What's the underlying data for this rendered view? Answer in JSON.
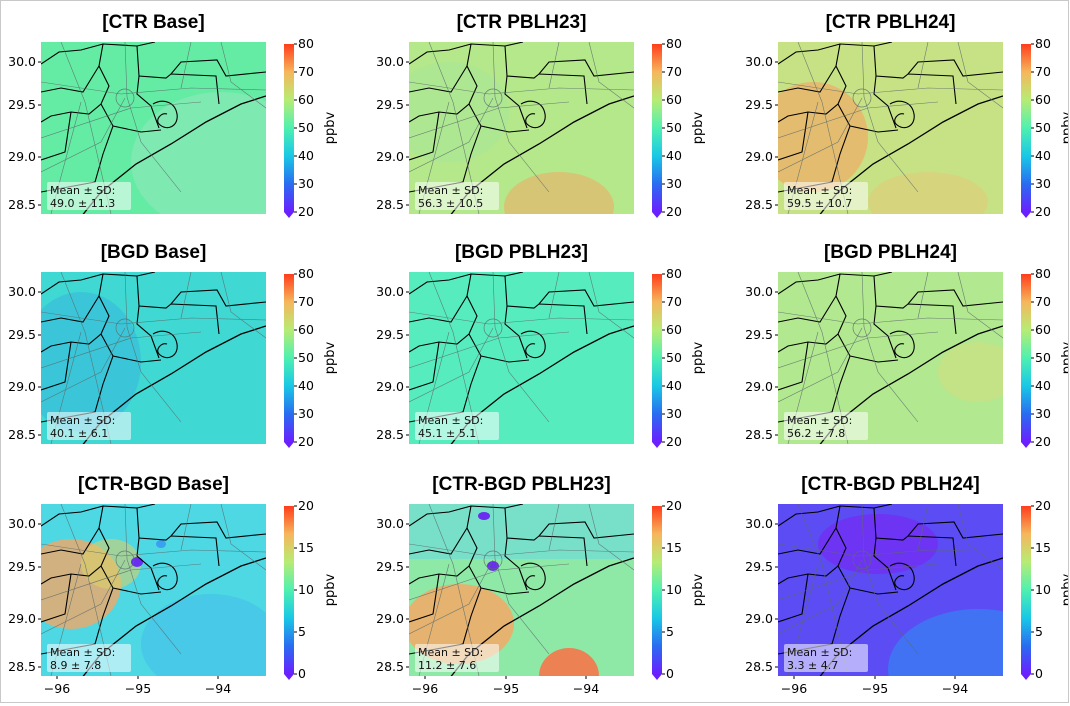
{
  "figure": {
    "x_ticks": [
      "−96",
      "−95",
      "−94"
    ],
    "y_ticks": [
      "30.0",
      "29.5",
      "29.0",
      "28.5"
    ],
    "colorbar_unit": "ppbv",
    "stat_label": "Mean ± SD:",
    "colormap": [
      "#6b1fff",
      "#2a6cf0",
      "#19c8e6",
      "#4ff0b0",
      "#b7ec74",
      "#f6b65c",
      "#ff3d1c"
    ],
    "rows": [
      {
        "colorbar_ticks": [
          "80",
          "70",
          "60",
          "50",
          "40",
          "30",
          "20"
        ],
        "colorbar_range": [
          20,
          80
        ],
        "panels": [
          {
            "title": "[CTR Base]",
            "stat": "49.0 ± 11.3",
            "base_color": "#64eca4"
          },
          {
            "title": "[CTR PBLH23]",
            "stat": "56.3 ± 10.5",
            "base_color": "#b4e88a"
          },
          {
            "title": "[CTR PBLH24]",
            "stat": "59.5 ± 10.7",
            "base_color": "#c6e285"
          }
        ]
      },
      {
        "colorbar_ticks": [
          "80",
          "70",
          "60",
          "50",
          "40",
          "30",
          "20"
        ],
        "colorbar_range": [
          20,
          80
        ],
        "panels": [
          {
            "title": "[BGD Base]",
            "stat": "40.1 ± 6.1",
            "base_color": "#3fd8d3"
          },
          {
            "title": "[BGD PBLH23]",
            "stat": "45.1 ± 5.1",
            "base_color": "#57ecbe"
          },
          {
            "title": "[BGD PBLH24]",
            "stat": "56.2 ± 7.8",
            "base_color": "#b2e890"
          }
        ]
      },
      {
        "colorbar_ticks": [
          "20",
          "15",
          "10",
          "5",
          "0"
        ],
        "colorbar_range": [
          0,
          20
        ],
        "panels": [
          {
            "title": "[CTR-BGD Base]",
            "stat": "8.9 ± 7.8",
            "base_color": "#4dd8e4"
          },
          {
            "title": "[CTR-BGD PBLH23]",
            "stat": "11.2 ± 7.6",
            "base_color": "#8ee8a6"
          },
          {
            "title": "[CTR-BGD PBLH24]",
            "stat": "3.3 ± 4.7",
            "base_color": "#5b4cf4"
          }
        ]
      }
    ]
  }
}
